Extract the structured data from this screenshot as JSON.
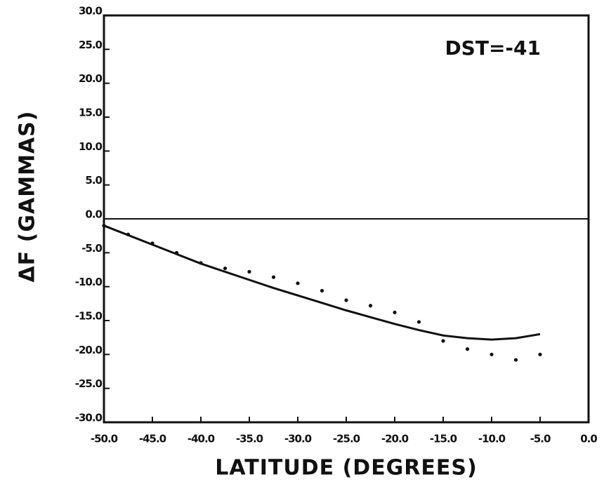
{
  "chart_data": {
    "type": "line",
    "xlabel": "LATITUDE (DEGREES)",
    "ylabel": "ΔF (GAMMAS)",
    "annotation": "DST=-41",
    "x": [
      -50,
      -47.5,
      -45,
      -42.5,
      -40,
      -37.5,
      -35,
      -32.5,
      -30,
      -27.5,
      -25,
      -22.5,
      -20,
      -17.5,
      -15,
      -12.5,
      -10,
      -7.5,
      -5
    ],
    "series": [
      {
        "style": "solid",
        "color": "#111111",
        "values": [
          -1,
          -2.4,
          -3.8,
          -5.2,
          -6.6,
          -7.8,
          -9,
          -10.2,
          -11.3,
          -12.4,
          -13.5,
          -14.5,
          -15.5,
          -16.4,
          -17.2,
          -17.6,
          -17.8,
          -17.6,
          -17
        ]
      },
      {
        "style": "dotted",
        "color": "#111111",
        "values": [
          -1,
          -2.3,
          -3.6,
          -5.0,
          -6.5,
          -7.3,
          -7.8,
          -8.6,
          -9.5,
          -10.6,
          -12,
          -12.8,
          -13.8,
          -15.2,
          -18,
          -19.2,
          -20,
          -20.8,
          -20
        ]
      }
    ],
    "xlim": [
      -50,
      0
    ],
    "xticks": [
      {
        "value": -50,
        "label": "-50.0"
      },
      {
        "value": -45,
        "label": "-45.0"
      },
      {
        "value": -40,
        "label": "-40.0"
      },
      {
        "value": -35,
        "label": "-35.0"
      },
      {
        "value": -30,
        "label": "-30.0"
      },
      {
        "value": -25,
        "label": "-25.0"
      },
      {
        "value": -20,
        "label": "-20.0"
      },
      {
        "value": -15,
        "label": "-15.0"
      },
      {
        "value": -10,
        "label": "-10.0"
      },
      {
        "value": -5,
        "label": "-5.0"
      },
      {
        "value": 0,
        "label": "0.0"
      }
    ],
    "ylim": [
      -30,
      30
    ],
    "yticks": [
      {
        "value": 30,
        "label": "30.0"
      },
      {
        "value": 25,
        "label": "25.0"
      },
      {
        "value": 20,
        "label": "20.0"
      },
      {
        "value": 15,
        "label": "15.0"
      },
      {
        "value": 10,
        "label": "10.0"
      },
      {
        "value": 5,
        "label": "5.0"
      },
      {
        "value": 0,
        "label": "0.0"
      },
      {
        "value": -5,
        "label": "-5.0"
      },
      {
        "value": -10,
        "label": "-10.0"
      },
      {
        "value": -15,
        "label": "-15.0"
      },
      {
        "value": -20,
        "label": "-20.0"
      },
      {
        "value": -25,
        "label": "-25.0"
      },
      {
        "value": -30,
        "label": "-30.0"
      }
    ],
    "zero_line": true
  }
}
